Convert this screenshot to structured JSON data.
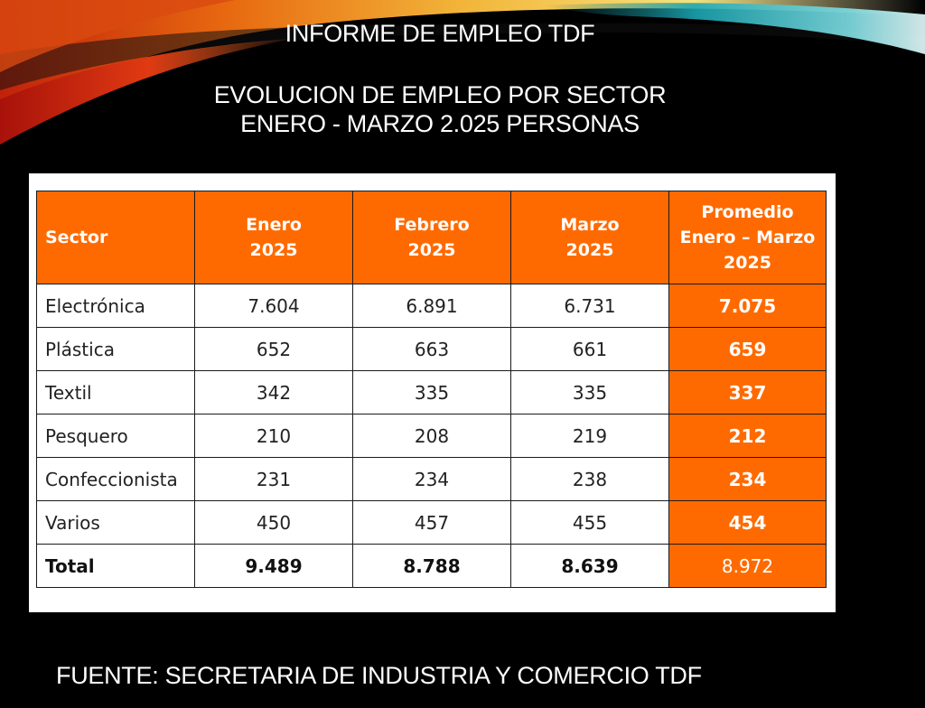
{
  "title": "INFORME DE EMPLEO TDF",
  "subtitle_line1": "EVOLUCION DE EMPLEO POR SECTOR",
  "subtitle_line2": "ENERO - MARZO 2.025 PERSONAS",
  "table": {
    "headers": [
      [
        "Sector"
      ],
      [
        "Enero",
        "2025"
      ],
      [
        "Febrero",
        "2025"
      ],
      [
        "Marzo",
        "2025"
      ],
      [
        "Promedio",
        "Enero – Marzo",
        "2025"
      ]
    ],
    "rows": [
      {
        "sector": "Electrónica",
        "enero": "7.604",
        "febrero": "6.891",
        "marzo": "6.731",
        "promedio": "7.075"
      },
      {
        "sector": "Plástica",
        "enero": "652",
        "febrero": "663",
        "marzo": "661",
        "promedio": "659"
      },
      {
        "sector": "Textil",
        "enero": "342",
        "febrero": "335",
        "marzo": "335",
        "promedio": "337"
      },
      {
        "sector": "Pesquero",
        "enero": "210",
        "febrero": "208",
        "marzo": "219",
        "promedio": "212"
      },
      {
        "sector": "Confeccionista",
        "enero": "231",
        "febrero": "234",
        "marzo": "238",
        "promedio": "234"
      },
      {
        "sector": "Varios",
        "enero": "450",
        "febrero": "457",
        "marzo": "455",
        "promedio": "454"
      }
    ],
    "total": {
      "sector": "Total",
      "enero": "9.489",
      "febrero": "8.788",
      "marzo": "8.639",
      "promedio": "8.972"
    }
  },
  "footer": "FUENTE: SECRETARIA DE INDUSTRIA Y COMERCIO TDF",
  "colors": {
    "background": "#000000",
    "header_orange": "#ff6a00",
    "text_white": "#ffffff"
  }
}
